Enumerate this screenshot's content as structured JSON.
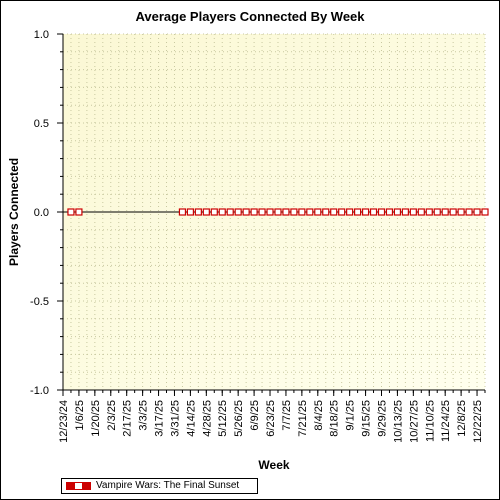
{
  "chart_data": {
    "type": "line",
    "title": "Average Players Connected By Week",
    "xlabel": "Week",
    "ylabel": "Players Connected",
    "ylim": [
      -1.0,
      1.0
    ],
    "y_ticks": [
      "1.0",
      "0.5",
      "0.0",
      "-0.5",
      "-1.0"
    ],
    "x_tick_labels": [
      "12/23/24",
      "1/6/25",
      "1/20/25",
      "2/3/25",
      "2/17/25",
      "3/3/25",
      "3/17/25",
      "3/31/25",
      "4/14/25",
      "4/28/25",
      "5/12/25",
      "5/26/25",
      "6/9/25",
      "6/23/25",
      "7/7/25",
      "7/21/25",
      "8/4/25",
      "8/18/25",
      "9/1/25",
      "9/15/25",
      "9/29/25",
      "10/13/25",
      "10/27/25",
      "11/10/25",
      "11/24/25",
      "12/8/25",
      "12/22/25"
    ],
    "grid": true,
    "legend_position": "bottom-left",
    "series": [
      {
        "name": "Vampire Wars: The Final Sunset",
        "color": "#cc0000",
        "points": [
          {
            "x": "12/30/24",
            "y": 0
          },
          {
            "x": "1/6/25",
            "y": 0
          },
          {
            "x": "4/7/25",
            "y": 0
          },
          {
            "x": "4/14/25",
            "y": 0
          },
          {
            "x": "4/21/25",
            "y": 0
          },
          {
            "x": "4/28/25",
            "y": 0
          },
          {
            "x": "5/5/25",
            "y": 0
          },
          {
            "x": "5/12/25",
            "y": 0
          },
          {
            "x": "5/19/25",
            "y": 0
          },
          {
            "x": "5/26/25",
            "y": 0
          },
          {
            "x": "6/2/25",
            "y": 0
          },
          {
            "x": "6/9/25",
            "y": 0
          },
          {
            "x": "6/16/25",
            "y": 0
          },
          {
            "x": "6/23/25",
            "y": 0
          },
          {
            "x": "6/30/25",
            "y": 0
          },
          {
            "x": "7/7/25",
            "y": 0
          },
          {
            "x": "7/14/25",
            "y": 0
          },
          {
            "x": "7/21/25",
            "y": 0
          },
          {
            "x": "7/28/25",
            "y": 0
          },
          {
            "x": "8/4/25",
            "y": 0
          },
          {
            "x": "8/11/25",
            "y": 0
          },
          {
            "x": "8/18/25",
            "y": 0
          },
          {
            "x": "8/25/25",
            "y": 0
          },
          {
            "x": "9/1/25",
            "y": 0
          },
          {
            "x": "9/8/25",
            "y": 0
          },
          {
            "x": "9/15/25",
            "y": 0
          },
          {
            "x": "9/22/25",
            "y": 0
          },
          {
            "x": "9/29/25",
            "y": 0
          },
          {
            "x": "10/6/25",
            "y": 0
          },
          {
            "x": "10/13/25",
            "y": 0
          },
          {
            "x": "10/20/25",
            "y": 0
          },
          {
            "x": "10/27/25",
            "y": 0
          },
          {
            "x": "11/3/25",
            "y": 0
          },
          {
            "x": "11/10/25",
            "y": 0
          },
          {
            "x": "11/17/25",
            "y": 0
          },
          {
            "x": "11/24/25",
            "y": 0
          },
          {
            "x": "12/1/25",
            "y": 0
          },
          {
            "x": "12/8/25",
            "y": 0
          },
          {
            "x": "12/15/25",
            "y": 0
          },
          {
            "x": "12/22/25",
            "y": 0
          },
          {
            "x": "12/29/25",
            "y": 0
          }
        ]
      }
    ]
  }
}
